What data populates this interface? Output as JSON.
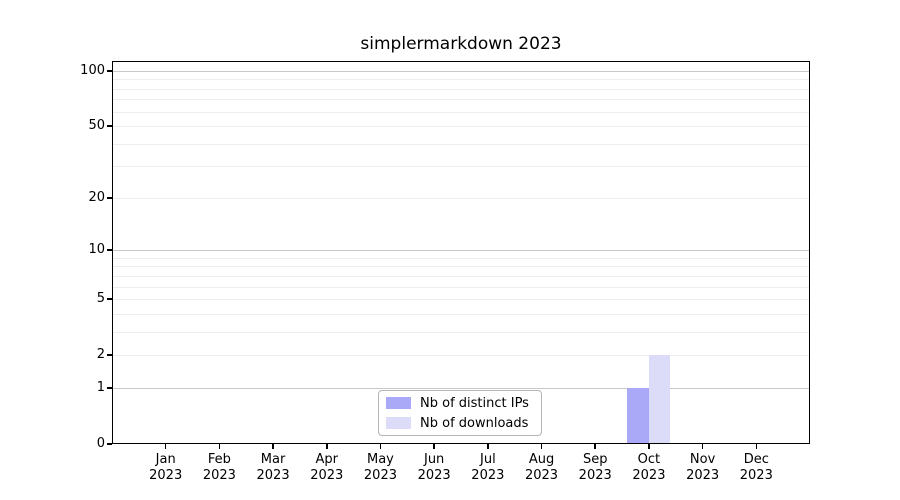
{
  "chart_data": {
    "type": "bar",
    "title": "simplermarkdown 2023",
    "categories": [
      "Jan",
      "Feb",
      "Mar",
      "Apr",
      "May",
      "Jun",
      "Jul",
      "Aug",
      "Sep",
      "Oct",
      "Nov",
      "Dec"
    ],
    "category_year": "2023",
    "series": [
      {
        "name": "Nb of distinct IPs",
        "color": "#a9a9f7",
        "values": [
          0,
          0,
          0,
          0,
          0,
          0,
          0,
          0,
          0,
          1,
          0,
          0
        ]
      },
      {
        "name": "Nb of downloads",
        "color": "#dcdcf9",
        "values": [
          0,
          0,
          0,
          0,
          0,
          0,
          0,
          0,
          0,
          2,
          0,
          0
        ]
      }
    ],
    "xlabel": "",
    "ylabel": "",
    "yscale": "log1p",
    "ylim": [
      0,
      113
    ],
    "yticks": [
      0,
      1,
      2,
      5,
      10,
      20,
      50,
      100
    ],
    "grid": {
      "major_lines": [
        1,
        10,
        100
      ],
      "minor_lines": [
        2,
        3,
        4,
        5,
        6,
        7,
        8,
        9,
        20,
        30,
        40,
        50,
        60,
        70,
        80,
        90
      ],
      "major_color": "#c8c8c8",
      "minor_color": "#eeeeee"
    },
    "legend": {
      "position": "lower center"
    }
  },
  "colors": {
    "background": "#ffffff",
    "spine": "#000000",
    "bar_distinct_ips": "#a9a9f7",
    "bar_downloads": "#dcdcf9"
  }
}
